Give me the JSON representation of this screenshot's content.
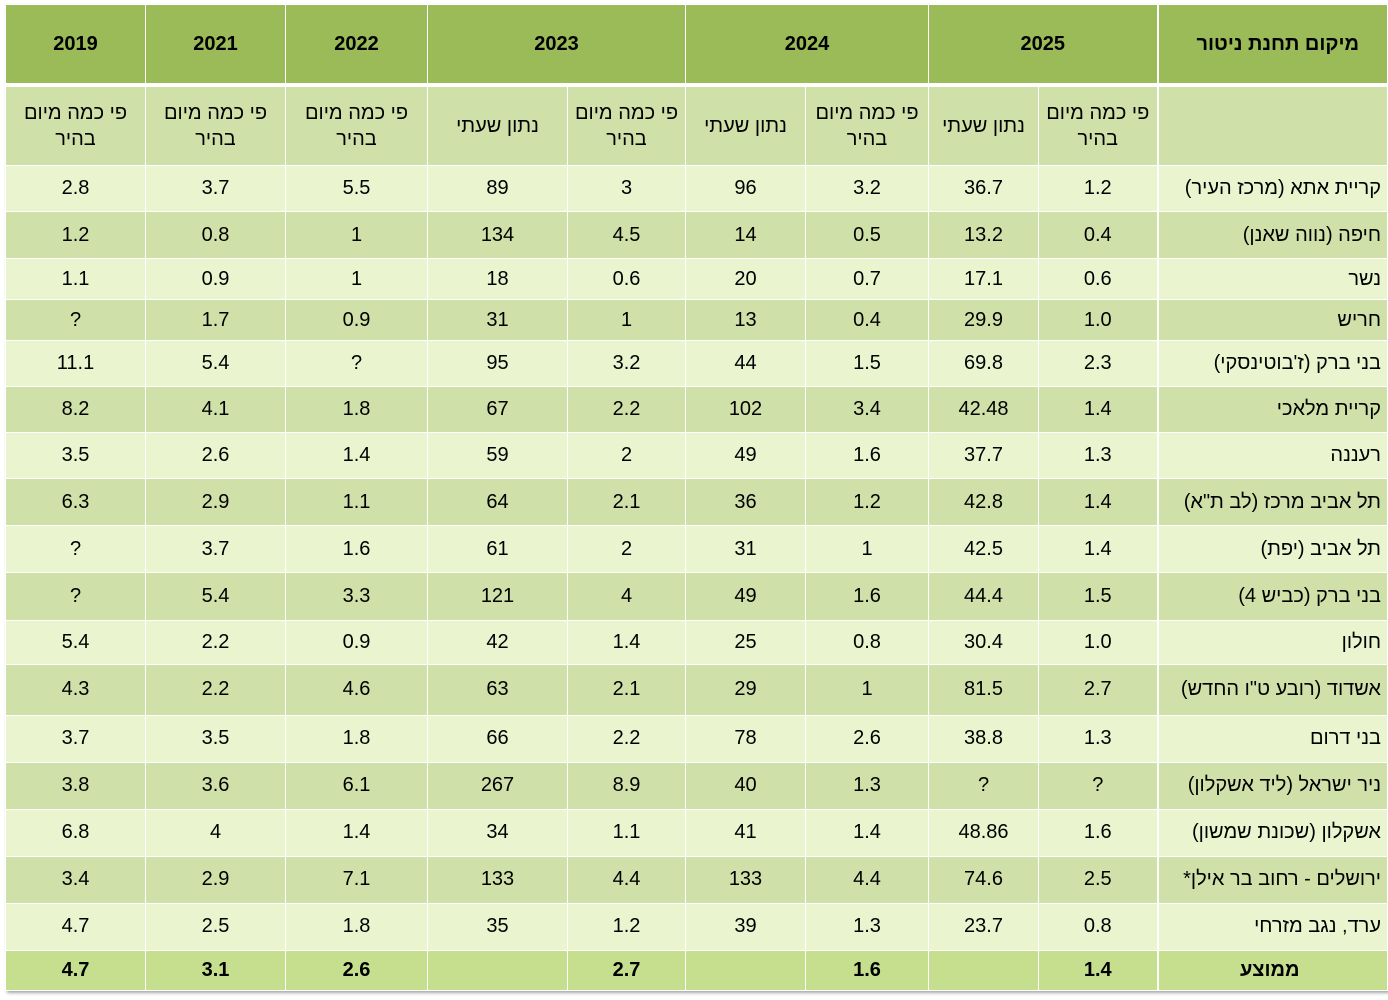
{
  "header": {
    "location": "מיקום תחנת ניטור",
    "years": [
      "2025",
      "2024",
      "2023",
      "2022",
      "2021",
      "2019"
    ]
  },
  "subheader": {
    "daily": "פי כמה מיום בהיר",
    "hourly": "נתון שעתי"
  },
  "rows": [
    {
      "loc": "קריית אתא (מרכז העיר)",
      "vals": [
        "1.2",
        "36.7",
        "3.2",
        "96",
        "3",
        "89",
        "5.5",
        "3.7",
        "2.8"
      ]
    },
    {
      "loc": "חיפה (נווה שאנן)",
      "vals": [
        "0.4",
        "13.2",
        "0.5",
        "14",
        "4.5",
        "134",
        "1",
        "0.8",
        "1.2"
      ]
    },
    {
      "loc": "נשר",
      "vals": [
        "0.6",
        "17.1",
        "0.7",
        "20",
        "0.6",
        "18",
        "1",
        "0.9",
        "1.1"
      ]
    },
    {
      "loc": "חריש",
      "vals": [
        "1.0",
        "29.9",
        "0.4",
        "13",
        "1",
        "31",
        "0.9",
        "1.7",
        "?"
      ]
    },
    {
      "loc": "בני ברק (ז'בוטינסקי)",
      "vals": [
        "2.3",
        "69.8",
        "1.5",
        "44",
        "3.2",
        "95",
        "?",
        "5.4",
        "11.1"
      ]
    },
    {
      "loc": "קריית מלאכי",
      "vals": [
        "1.4",
        "42.48",
        "3.4",
        "102",
        "2.2",
        "67",
        "1.8",
        "4.1",
        "8.2"
      ]
    },
    {
      "loc": "רעננה",
      "vals": [
        "1.3",
        "37.7",
        "1.6",
        "49",
        "2",
        "59",
        "1.4",
        "2.6",
        "3.5"
      ]
    },
    {
      "loc": "תל אביב מרכז (לב ת\"א)",
      "vals": [
        "1.4",
        "42.8",
        "1.2",
        "36",
        "2.1",
        "64",
        "1.1",
        "2.9",
        "6.3"
      ]
    },
    {
      "loc": "תל אביב (יפת)",
      "vals": [
        "1.4",
        "42.5",
        "1",
        "31",
        "2",
        "61",
        "1.6",
        "3.7",
        "?"
      ]
    },
    {
      "loc": "בני ברק (כביש 4)",
      "vals": [
        "1.5",
        "44.4",
        "1.6",
        "49",
        "4",
        "121",
        "3.3",
        "5.4",
        "?"
      ]
    },
    {
      "loc": "חולון",
      "vals": [
        "1.0",
        "30.4",
        "0.8",
        "25",
        "1.4",
        "42",
        "0.9",
        "2.2",
        "5.4"
      ]
    },
    {
      "loc": "אשדוד (רובע ט\"ו החדש)",
      "vals": [
        "2.7",
        "81.5",
        "1",
        "29",
        "2.1",
        "63",
        "4.6",
        "2.2",
        "4.3"
      ]
    },
    {
      "loc": "בני דרום",
      "vals": [
        "1.3",
        "38.8",
        "2.6",
        "78",
        "2.2",
        "66",
        "1.8",
        "3.5",
        "3.7"
      ]
    },
    {
      "loc": "ניר ישראל (ליד אשקלון)",
      "vals": [
        "?",
        "?",
        "1.3",
        "40",
        "8.9",
        "267",
        "6.1",
        "3.6",
        "3.8"
      ]
    },
    {
      "loc": "אשקלון (שכונת שמשון)",
      "vals": [
        "1.6",
        "48.86",
        "1.4",
        "41",
        "1.1",
        "34",
        "1.4",
        "4",
        "6.8"
      ]
    },
    {
      "loc": "ירושלים  - רחוב בר אילן*",
      "vals": [
        "2.5",
        "74.6",
        "4.4",
        "133",
        "4.4",
        "133",
        "7.1",
        "2.9",
        "3.4"
      ]
    },
    {
      "loc": "ערד, נגב מזרחי",
      "vals": [
        "0.8",
        "23.7",
        "1.3",
        "39",
        "1.2",
        "35",
        "1.8",
        "2.5",
        "4.7"
      ]
    }
  ],
  "average": {
    "loc": "ממוצע",
    "vals": [
      "1.4",
      "",
      "1.6",
      "",
      "2.7",
      "",
      "2.6",
      "3.1",
      "4.7"
    ]
  },
  "colors": {
    "header": "#9bbb59",
    "light": "#eaf5d0",
    "dark": "#cfe0a9",
    "avg": "#c5df8e"
  }
}
